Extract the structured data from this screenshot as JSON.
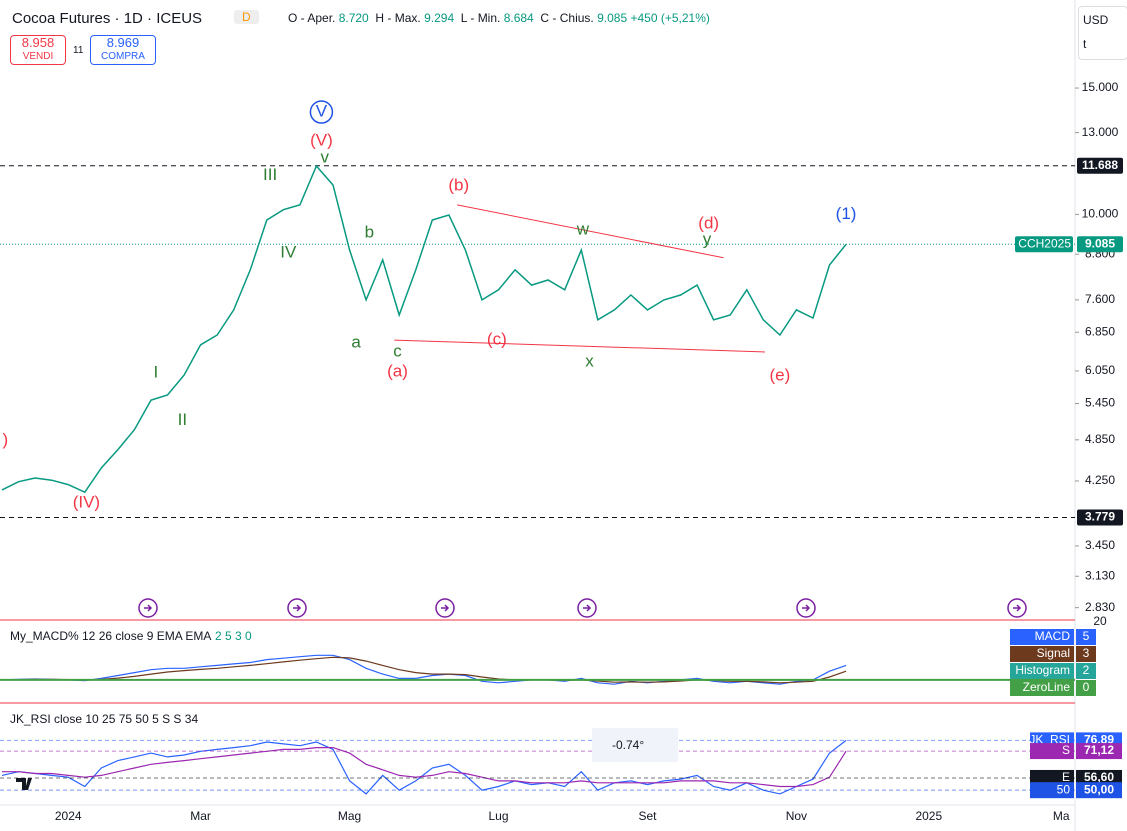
{
  "header": {
    "symbol": "Cocoa Futures · 1D · ICEUS",
    "badge": "D",
    "open_label": "O - Aper.",
    "open": "8.720",
    "high_label": "H - Max.",
    "high": "9.294",
    "low_label": "L - Min.",
    "low": "8.684",
    "close_label": "C - Chius.",
    "close": "9.085",
    "change": "+450 (+5,21%)",
    "sell_price": "8.958",
    "sell": "VENDI",
    "spread": "11",
    "buy_price": "8.969",
    "buy": "COMPRA",
    "currency": "USD",
    "unit": "t"
  },
  "chart_data": [
    {
      "type": "line",
      "name": "price",
      "color": "#089981",
      "log_scale": true,
      "categories": [
        null,
        null,
        null,
        null,
        "2024",
        null,
        null,
        null,
        null,
        null,
        null,
        null,
        "Mar",
        null,
        null,
        null,
        null,
        null,
        null,
        null,
        null,
        "Mag",
        null,
        null,
        null,
        null,
        null,
        null,
        null,
        null,
        "Lug",
        null,
        null,
        null,
        null,
        null,
        null,
        null,
        null,
        "Set",
        null,
        null,
        null,
        null,
        null,
        null,
        null,
        null,
        "Nov",
        null,
        null,
        null,
        null,
        null,
        null,
        null,
        "2025",
        null,
        null,
        null,
        null,
        null,
        null,
        null,
        "Ma"
      ],
      "values": [
        4.13,
        4.24,
        4.29,
        4.26,
        4.2,
        4.1,
        4.43,
        4.7,
        5.01,
        5.51,
        5.6,
        5.97,
        6.58,
        6.79,
        7.36,
        8.37,
        9.82,
        10.15,
        10.31,
        11.68,
        10.99,
        8.92,
        7.6,
        8.64,
        7.24,
        8.37,
        9.82,
        9.98,
        8.92,
        7.6,
        7.85,
        8.37,
        7.97,
        8.1,
        7.85,
        8.92,
        7.13,
        7.36,
        7.72,
        7.36,
        7.6,
        7.72,
        7.97,
        7.13,
        7.24,
        7.85,
        7.13,
        6.79,
        7.36,
        7.17,
        8.5,
        9.085,
        null,
        null,
        null,
        null,
        null,
        null,
        null,
        null,
        null,
        null,
        null,
        null,
        null
      ],
      "ylim": [
        2.72,
        19.9
      ],
      "yticks": [
        {
          "value": 15,
          "label": "15.000"
        },
        {
          "value": 13,
          "label": "13.000"
        },
        {
          "value": 10,
          "label": "10.000"
        },
        {
          "value": 8.8,
          "label": "8.800"
        },
        {
          "value": 7.6,
          "label": "7.600"
        },
        {
          "value": 6.85,
          "label": "6.850"
        },
        {
          "value": 6.05,
          "label": "6.050"
        },
        {
          "value": 5.45,
          "label": "5.450"
        },
        {
          "value": 4.85,
          "label": "4.850"
        },
        {
          "value": 4.25,
          "label": "4.250"
        },
        {
          "value": 3.45,
          "label": "3.450"
        },
        {
          "value": 3.13,
          "label": "3.130"
        },
        {
          "value": 2.83,
          "label": "2.830"
        }
      ],
      "levels": [
        {
          "value": 11.688,
          "label": "11.688",
          "color": "#131722"
        },
        {
          "value": 3.779,
          "label": "3.779",
          "color": "#131722"
        }
      ],
      "last_tag": {
        "name": "CCH2025",
        "value": 9.085,
        "label": "9.085",
        "color": "#089981"
      },
      "annotations": [
        {
          "text": ")",
          "x": 0.2,
          "y": 4.84,
          "color": "#f23645"
        },
        {
          "text": "(IV)",
          "x": 5.1,
          "y": 3.96,
          "color": "#f23645"
        },
        {
          "text": "I",
          "x": 9.3,
          "y": 6.01,
          "color": "#2e7d32"
        },
        {
          "text": "II",
          "x": 10.9,
          "y": 5.16,
          "color": "#2e7d32"
        },
        {
          "text": "III",
          "x": 16.2,
          "y": 11.32,
          "color": "#2e7d32"
        },
        {
          "text": "IV",
          "x": 17.3,
          "y": 8.84,
          "color": "#2e7d32"
        },
        {
          "text": "V",
          "x": 19.3,
          "y": 13.89,
          "color": "#1e53e5",
          "circled": true
        },
        {
          "text": "(V)",
          "x": 19.3,
          "y": 12.66,
          "color": "#f23645"
        },
        {
          "text": "v",
          "x": 19.5,
          "y": 11.99,
          "color": "#2e7d32"
        },
        {
          "text": "a",
          "x": 21.4,
          "y": 6.62,
          "color": "#2e7d32"
        },
        {
          "text": "b",
          "x": 22.2,
          "y": 9.42,
          "color": "#2e7d32"
        },
        {
          "text": "c",
          "x": 23.9,
          "y": 6.43,
          "color": "#2e7d32"
        },
        {
          "text": "(a)",
          "x": 23.9,
          "y": 6.03,
          "color": "#f23645"
        },
        {
          "text": "(b)",
          "x": 27.6,
          "y": 10.95,
          "color": "#f23645"
        },
        {
          "text": "(c)",
          "x": 29.9,
          "y": 6.68,
          "color": "#f23645"
        },
        {
          "text": "w",
          "x": 35.1,
          "y": 9.51,
          "color": "#2e7d32"
        },
        {
          "text": "x",
          "x": 35.5,
          "y": 6.23,
          "color": "#2e7d32"
        },
        {
          "text": "(d)",
          "x": 42.7,
          "y": 9.7,
          "color": "#f23645"
        },
        {
          "text": "y",
          "x": 42.6,
          "y": 9.21,
          "color": "#2e7d32"
        },
        {
          "text": "(e)",
          "x": 47.0,
          "y": 5.95,
          "color": "#f23645"
        },
        {
          "text": "(1)",
          "x": 51.0,
          "y": 10.0,
          "color": "#1e53e5"
        }
      ],
      "trendlines": [
        {
          "x": [
            27.5,
            43.6
          ],
          "y": [
            10.31,
            8.7
          ],
          "color": "#f23645"
        },
        {
          "x": [
            23.7,
            46.1
          ],
          "y": [
            6.68,
            6.43
          ],
          "color": "#f23645"
        }
      ]
    },
    {
      "type": "line",
      "name": "macd",
      "title": "My_MACD% 12 26 close 9 EMA EMA",
      "params": "2 5 3 0",
      "ylim": [
        -8,
        20
      ],
      "yticks": [
        20
      ],
      "series": [
        {
          "name": "MACD",
          "color": "#2962ff",
          "values": [
            0,
            0.2,
            0.3,
            0.2,
            0,
            -0.3,
            0.5,
            1.5,
            2.5,
            3.5,
            4,
            4,
            4.5,
            5,
            5.5,
            6,
            7,
            7.5,
            8,
            8.5,
            8.5,
            7,
            4,
            2,
            0.5,
            0.5,
            1.5,
            2,
            1.5,
            -0.5,
            -1,
            -0.5,
            0,
            0,
            -0.5,
            0.5,
            -1,
            -1.5,
            -0.5,
            -1,
            -0.5,
            0,
            0.5,
            -0.5,
            -1,
            -0.5,
            -1,
            -1.5,
            -0.5,
            0,
            3,
            5
          ]
        },
        {
          "name": "Signal",
          "color": "#6d3a1e",
          "values": [
            0.1,
            0.1,
            0.2,
            0.2,
            0.1,
            0,
            0.2,
            0.6,
            1.2,
            2,
            2.7,
            3.2,
            3.6,
            4,
            4.5,
            5,
            5.6,
            6.2,
            6.8,
            7.3,
            7.8,
            7.6,
            6.5,
            5,
            3.5,
            2.5,
            2,
            2,
            1.8,
            1,
            0.3,
            0,
            0,
            0,
            -0.2,
            0,
            -0.4,
            -0.8,
            -0.7,
            -0.8,
            -0.7,
            -0.4,
            0,
            -0.2,
            -0.5,
            -0.5,
            -0.7,
            -1,
            -0.8,
            -0.5,
            1,
            3
          ]
        }
      ],
      "extra_tags": [
        {
          "name": "Histogram",
          "color": "#26a69a",
          "value": 2
        },
        {
          "name": "ZeroLine",
          "color": "#43a047",
          "value": 0
        }
      ]
    },
    {
      "type": "line",
      "name": "rsi",
      "title": "JK_RSI close 10 25 75 50 5 S S 34",
      "angle_label": "-0.74°",
      "ylim": [
        42,
        96
      ],
      "series": [
        {
          "name": "JK_RSI",
          "color": "#2962ff",
          "values": [
            58,
            60,
            59,
            58,
            57,
            52,
            62,
            66,
            68,
            70,
            68,
            69,
            71,
            72,
            73,
            74,
            76,
            75,
            74,
            76,
            72,
            55,
            48,
            58,
            50,
            55,
            62,
            64,
            58,
            50,
            52,
            55,
            53,
            54,
            52,
            60,
            50,
            54,
            55,
            53,
            55,
            56,
            58,
            52,
            50,
            54,
            50,
            48,
            52,
            56,
            70,
            76.89
          ]
        },
        {
          "name": "S",
          "color": "#9c27b0",
          "values": [
            60,
            60,
            59,
            59,
            58,
            57,
            58,
            60,
            62,
            64,
            65,
            66,
            67,
            68,
            69,
            70,
            71,
            72,
            72,
            73,
            73,
            70,
            64,
            61,
            58,
            57,
            58,
            60,
            59,
            57,
            55,
            55,
            54,
            54,
            54,
            55,
            54,
            54,
            54,
            54,
            54,
            55,
            55,
            55,
            54,
            54,
            53,
            52,
            52,
            53,
            57,
            71.12
          ]
        }
      ],
      "tags": [
        {
          "name": "JK_RSI",
          "value": 76.89,
          "label": "76,89",
          "color": "#2962ff"
        },
        {
          "name": "S",
          "value": 71.12,
          "label": "71,12",
          "color": "#9c27b0"
        },
        {
          "name": "E",
          "value": 56.6,
          "label": "56,60",
          "color": "#131722"
        },
        {
          "name": "50",
          "value": 50,
          "label": "50,00",
          "color": "#1e53e5"
        }
      ]
    }
  ]
}
